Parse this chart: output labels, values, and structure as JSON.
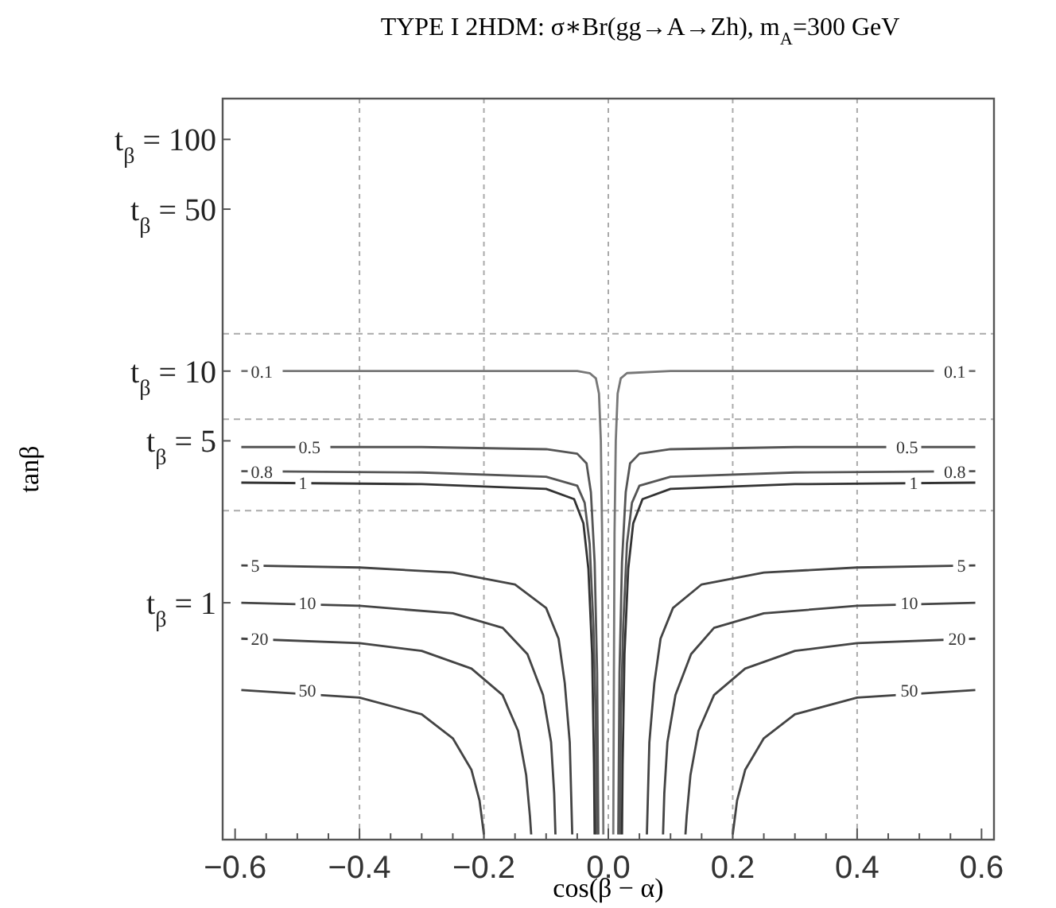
{
  "chart_data": {
    "type": "line",
    "title": "TYPE I 2HDM: σ∗Br(gg→A→Zh), m$_{A}$=300 GeV",
    "xlabel": "cos(β − α)",
    "ylabel": "tanβ",
    "log": "y",
    "grid": "x",
    "marker": "none",
    "line_style": "solid",
    "xlim": [
      -0.62,
      0.62
    ],
    "xticks": [
      {
        "value": -0.6,
        "label": "−0.6"
      },
      {
        "value": -0.55,
        "label": null
      },
      {
        "value": -0.5,
        "label": null
      },
      {
        "value": -0.45,
        "label": null
      },
      {
        "value": -0.4,
        "label": "−0.4"
      },
      {
        "value": -0.35,
        "label": null
      },
      {
        "value": -0.3,
        "label": null
      },
      {
        "value": -0.25,
        "label": null
      },
      {
        "value": -0.2,
        "label": "−0.2"
      },
      {
        "value": -0.15,
        "label": null
      },
      {
        "value": -0.1,
        "label": null
      },
      {
        "value": -0.05,
        "label": null
      },
      {
        "value": 0,
        "label": "0.0"
      },
      {
        "value": 0.05,
        "label": null
      },
      {
        "value": 0.1,
        "label": null
      },
      {
        "value": 0.15,
        "label": null
      },
      {
        "value": 0.2,
        "label": "0.2"
      },
      {
        "value": 0.25,
        "label": null
      },
      {
        "value": 0.3,
        "label": null
      },
      {
        "value": 0.35,
        "label": null
      },
      {
        "value": 0.4,
        "label": "0.4"
      },
      {
        "value": 0.45,
        "label": null
      },
      {
        "value": 0.5,
        "label": null
      },
      {
        "value": 0.55,
        "label": null
      },
      {
        "value": 0.6,
        "label": "0.6"
      }
    ],
    "ylim": [
      0.095,
      150
    ],
    "yticks": [
      {
        "value": 1,
        "label": "t$_{β}$ = 1"
      },
      {
        "value": 5,
        "label": "t$_{β}$ = 5"
      },
      {
        "value": 10,
        "label": "t$_{β}$ = 10"
      },
      {
        "value": 50,
        "label": "t$_{β}$ = 50"
      },
      {
        "value": 100,
        "label": "t$_{β}$ = 100"
      }
    ],
    "ref_lines": [
      {
        "axis": "y",
        "value": 14.5,
        "color": "#aaaaaa",
        "line_style": "dashed"
      },
      {
        "axis": "y",
        "value": 6.2,
        "color": "#aaaaaa",
        "line_style": "dashed"
      },
      {
        "axis": "y",
        "value": 2.5,
        "color": "#aaaaaa",
        "line_style": "dashed"
      }
    ],
    "series": [
      {
        "name": "0.1",
        "color": "#777777",
        "x": [
          -0.59,
          -0.2,
          -0.05,
          -0.03,
          -0.02,
          -0.015,
          -0.012,
          -0.01,
          -0.009,
          -0.008,
          null,
          0.008,
          0.009,
          0.01,
          0.012,
          0.015,
          0.02,
          0.03,
          0.1,
          0.59
        ],
        "values": [
          10,
          10,
          10,
          9.8,
          9.3,
          8,
          5,
          2,
          0.5,
          0.1,
          null,
          0.1,
          0.5,
          2,
          5,
          8,
          9.3,
          9.8,
          10,
          10
        ]
      },
      {
        "name": "0.5",
        "color": "#555555",
        "x": [
          -0.59,
          -0.3,
          -0.1,
          -0.05,
          -0.035,
          -0.028,
          -0.022,
          -0.018,
          -0.016,
          null,
          0.016,
          0.018,
          0.022,
          0.028,
          0.035,
          0.05,
          0.1,
          0.3,
          0.59
        ],
        "values": [
          4.7,
          4.7,
          4.6,
          4.4,
          4,
          3,
          1.5,
          0.5,
          0.1,
          null,
          0.1,
          0.5,
          1.5,
          3,
          4,
          4.4,
          4.6,
          4.7,
          4.7
        ]
      },
      {
        "name": "0.8",
        "color": "#555555",
        "x": [
          -0.59,
          -0.3,
          -0.1,
          -0.05,
          -0.038,
          -0.03,
          -0.024,
          -0.02,
          -0.019,
          null,
          0.019,
          0.02,
          0.024,
          0.03,
          0.038,
          0.05,
          0.1,
          0.3,
          0.59
        ],
        "values": [
          3.7,
          3.65,
          3.5,
          3.2,
          2.7,
          1.8,
          0.8,
          0.3,
          0.1,
          null,
          0.1,
          0.3,
          0.8,
          1.8,
          2.7,
          3.2,
          3.5,
          3.65,
          3.7
        ]
      },
      {
        "name": "1",
        "color": "#333333",
        "x": [
          -0.59,
          -0.3,
          -0.1,
          -0.055,
          -0.04,
          -0.032,
          -0.026,
          -0.023,
          -0.022,
          null,
          0.022,
          0.023,
          0.026,
          0.032,
          0.04,
          0.055,
          0.1,
          0.3,
          0.59
        ],
        "values": [
          3.3,
          3.25,
          3.1,
          2.8,
          2.2,
          1.4,
          0.6,
          0.2,
          0.1,
          null,
          0.1,
          0.2,
          0.6,
          1.4,
          2.2,
          2.8,
          3.1,
          3.25,
          3.3
        ]
      },
      {
        "name": "5",
        "color": "#444444",
        "x": [
          -0.59,
          -0.4,
          -0.25,
          -0.15,
          -0.1,
          -0.08,
          -0.07,
          -0.062,
          -0.058,
          null,
          0.062,
          0.066,
          0.074,
          0.084,
          0.104,
          0.15,
          0.25,
          0.4,
          0.59
        ],
        "values": [
          1.45,
          1.42,
          1.35,
          1.2,
          0.95,
          0.7,
          0.45,
          0.25,
          0.1,
          null,
          0.1,
          0.25,
          0.45,
          0.7,
          0.95,
          1.2,
          1.35,
          1.42,
          1.45
        ]
      },
      {
        "name": "10",
        "color": "#444444",
        "x": [
          -0.59,
          -0.4,
          -0.25,
          -0.17,
          -0.13,
          -0.105,
          -0.092,
          -0.087,
          -0.085,
          null,
          0.088,
          0.09,
          0.095,
          0.108,
          0.133,
          0.17,
          0.25,
          0.4,
          0.59
        ],
        "values": [
          1,
          0.97,
          0.9,
          0.78,
          0.6,
          0.4,
          0.25,
          0.15,
          0.1,
          null,
          0.1,
          0.15,
          0.25,
          0.4,
          0.6,
          0.78,
          0.9,
          0.97,
          1
        ]
      },
      {
        "name": "20",
        "color": "#444444",
        "x": [
          -0.59,
          -0.4,
          -0.3,
          -0.22,
          -0.17,
          -0.145,
          -0.132,
          -0.126,
          -0.124,
          null,
          0.124,
          0.126,
          0.132,
          0.145,
          0.17,
          0.22,
          0.3,
          0.4,
          0.59
        ],
        "values": [
          0.7,
          0.67,
          0.62,
          0.52,
          0.4,
          0.28,
          0.18,
          0.12,
          0.1,
          null,
          0.1,
          0.12,
          0.18,
          0.28,
          0.4,
          0.52,
          0.62,
          0.67,
          0.7
        ]
      },
      {
        "name": "50",
        "color": "#444444",
        "x": [
          -0.59,
          -0.4,
          -0.3,
          -0.25,
          -0.22,
          -0.207,
          -0.2,
          null,
          0.2,
          0.207,
          0.22,
          0.25,
          0.3,
          0.4,
          0.59
        ],
        "values": [
          0.42,
          0.39,
          0.33,
          0.26,
          0.19,
          0.14,
          0.1,
          null,
          0.1,
          0.14,
          0.19,
          0.26,
          0.33,
          0.39,
          0.42
        ]
      }
    ]
  }
}
